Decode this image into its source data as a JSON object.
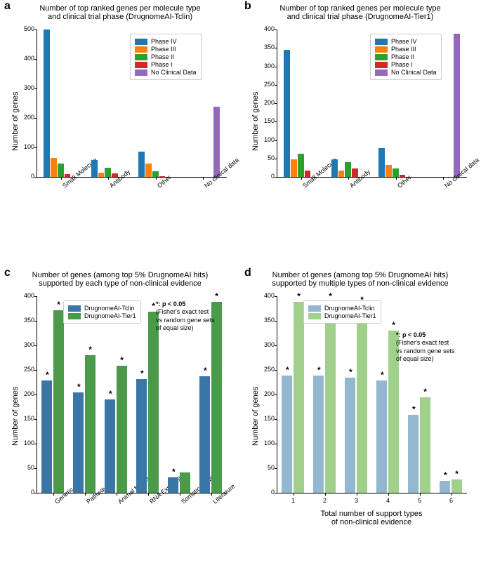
{
  "colors": {
    "phase4": "#1f77b4",
    "phase3": "#ff7f0e",
    "phase2": "#2ca02c",
    "phase1": "#d62728",
    "noclin": "#9467bd",
    "tclin": "#3a76a6",
    "tier1": "#4a9a4a",
    "tclin_light": "#92b7cf",
    "tier1_light": "#a1cf8c",
    "bg": "#ffffff"
  },
  "panelA": {
    "label": "a",
    "title": "Number of top ranked genes per molecule type\nand clinical trial phase (DrugnomeAI-Tclin)",
    "ylabel": "Number of genes",
    "ylim": [
      0,
      500
    ],
    "ytick_step": 100,
    "categories": [
      "Small Molecule",
      "Antibody",
      "Other",
      "No clinical data"
    ],
    "phases": [
      "Phase IV",
      "Phase III",
      "Phase II",
      "Phase I",
      "No Clinical Data"
    ],
    "phase_colors": [
      "#1f77b4",
      "#ff7f0e",
      "#2ca02c",
      "#d62728",
      "#9467bd"
    ],
    "data": {
      "Small Molecule": [
        500,
        65,
        45,
        10,
        0
      ],
      "Antibody": [
        58,
        15,
        30,
        12,
        0
      ],
      "Other": [
        85,
        45,
        20,
        3,
        0
      ],
      "No clinical data": [
        0,
        0,
        0,
        0,
        238
      ]
    }
  },
  "panelB": {
    "label": "b",
    "title": "Number of top ranked genes per molecule type\nand clinical trial phase (DrugnomeAI-Tier1)",
    "ylabel": "Number of genes",
    "ylim": [
      0,
      400
    ],
    "ytick_step": 50,
    "categories": [
      "Small Molecule",
      "Antibody",
      "Other",
      "No clinical data"
    ],
    "phases": [
      "Phase IV",
      "Phase III",
      "Phase II",
      "Phase I",
      "No Clinical Data"
    ],
    "phase_colors": [
      "#1f77b4",
      "#ff7f0e",
      "#2ca02c",
      "#d62728",
      "#9467bd"
    ],
    "data": {
      "Small Molecule": [
        345,
        48,
        62,
        18,
        0
      ],
      "Antibody": [
        47,
        18,
        40,
        22,
        0
      ],
      "Other": [
        78,
        32,
        22,
        5,
        0
      ],
      "No clinical data": [
        0,
        0,
        0,
        0,
        388
      ]
    }
  },
  "panelC": {
    "label": "c",
    "title": "Number of genes (among top 5% DrugnomeAI hits)\nsupported by each type of non-clinical evidence",
    "ylabel": "Number of genes",
    "ylim": [
      0,
      400
    ],
    "ytick_step": 50,
    "categories": [
      "Genetic",
      "Pathway",
      "Animal Models",
      "RNA Expression",
      "Somatic Mutation",
      "Literature"
    ],
    "series": [
      "DrugnomeAI-Tclin",
      "DrugnomeAI-Tier1"
    ],
    "series_colors": [
      "#3a76a6",
      "#4a9a4a"
    ],
    "sig_note": "*: p < 0.05\n(Fisher's exact test\nvs random gene sets\nof equal size)",
    "data": {
      "Genetic": [
        228,
        372
      ],
      "Pathway": [
        205,
        280
      ],
      "Animal Models": [
        190,
        258
      ],
      "RNA Expression": [
        232,
        368
      ],
      "Somatic Mutation": [
        32,
        42
      ],
      "Literature": [
        237,
        388
      ]
    },
    "sig": {
      "Genetic": [
        true,
        true
      ],
      "Pathway": [
        true,
        true
      ],
      "Animal Models": [
        true,
        true
      ],
      "RNA Expression": [
        true,
        true
      ],
      "Somatic Mutation": [
        true,
        false
      ],
      "Literature": [
        true,
        true
      ]
    }
  },
  "panelD": {
    "label": "d",
    "title": "Number of genes (among top 5% DrugnomeAI hits)\nsupported by multiple types of non-clinical evidence",
    "ylabel": "Number of genes",
    "xlabel": "Total number of support types\nof non-clinical evidence",
    "ylim": [
      0,
      400
    ],
    "ytick_step": 50,
    "categories": [
      "1",
      "2",
      "3",
      "4",
      "5",
      "6"
    ],
    "series": [
      "DrugnomeAI-Tclin",
      "DrugnomeAI-Tier1"
    ],
    "series_colors": [
      "#92b7cf",
      "#a1cf8c"
    ],
    "sig_note": "*: p < 0.05\n(Fisher's exact test\nvs random gene sets\nof equal size)",
    "data": {
      "1": [
        238,
        388
      ],
      "2": [
        238,
        388
      ],
      "3": [
        235,
        382
      ],
      "4": [
        228,
        330
      ],
      "5": [
        158,
        195
      ],
      "6": [
        25,
        27
      ]
    },
    "sig": {
      "1": [
        true,
        true
      ],
      "2": [
        true,
        true
      ],
      "3": [
        true,
        true
      ],
      "4": [
        true,
        true
      ],
      "5": [
        true,
        true
      ],
      "6": [
        true,
        true
      ]
    }
  }
}
